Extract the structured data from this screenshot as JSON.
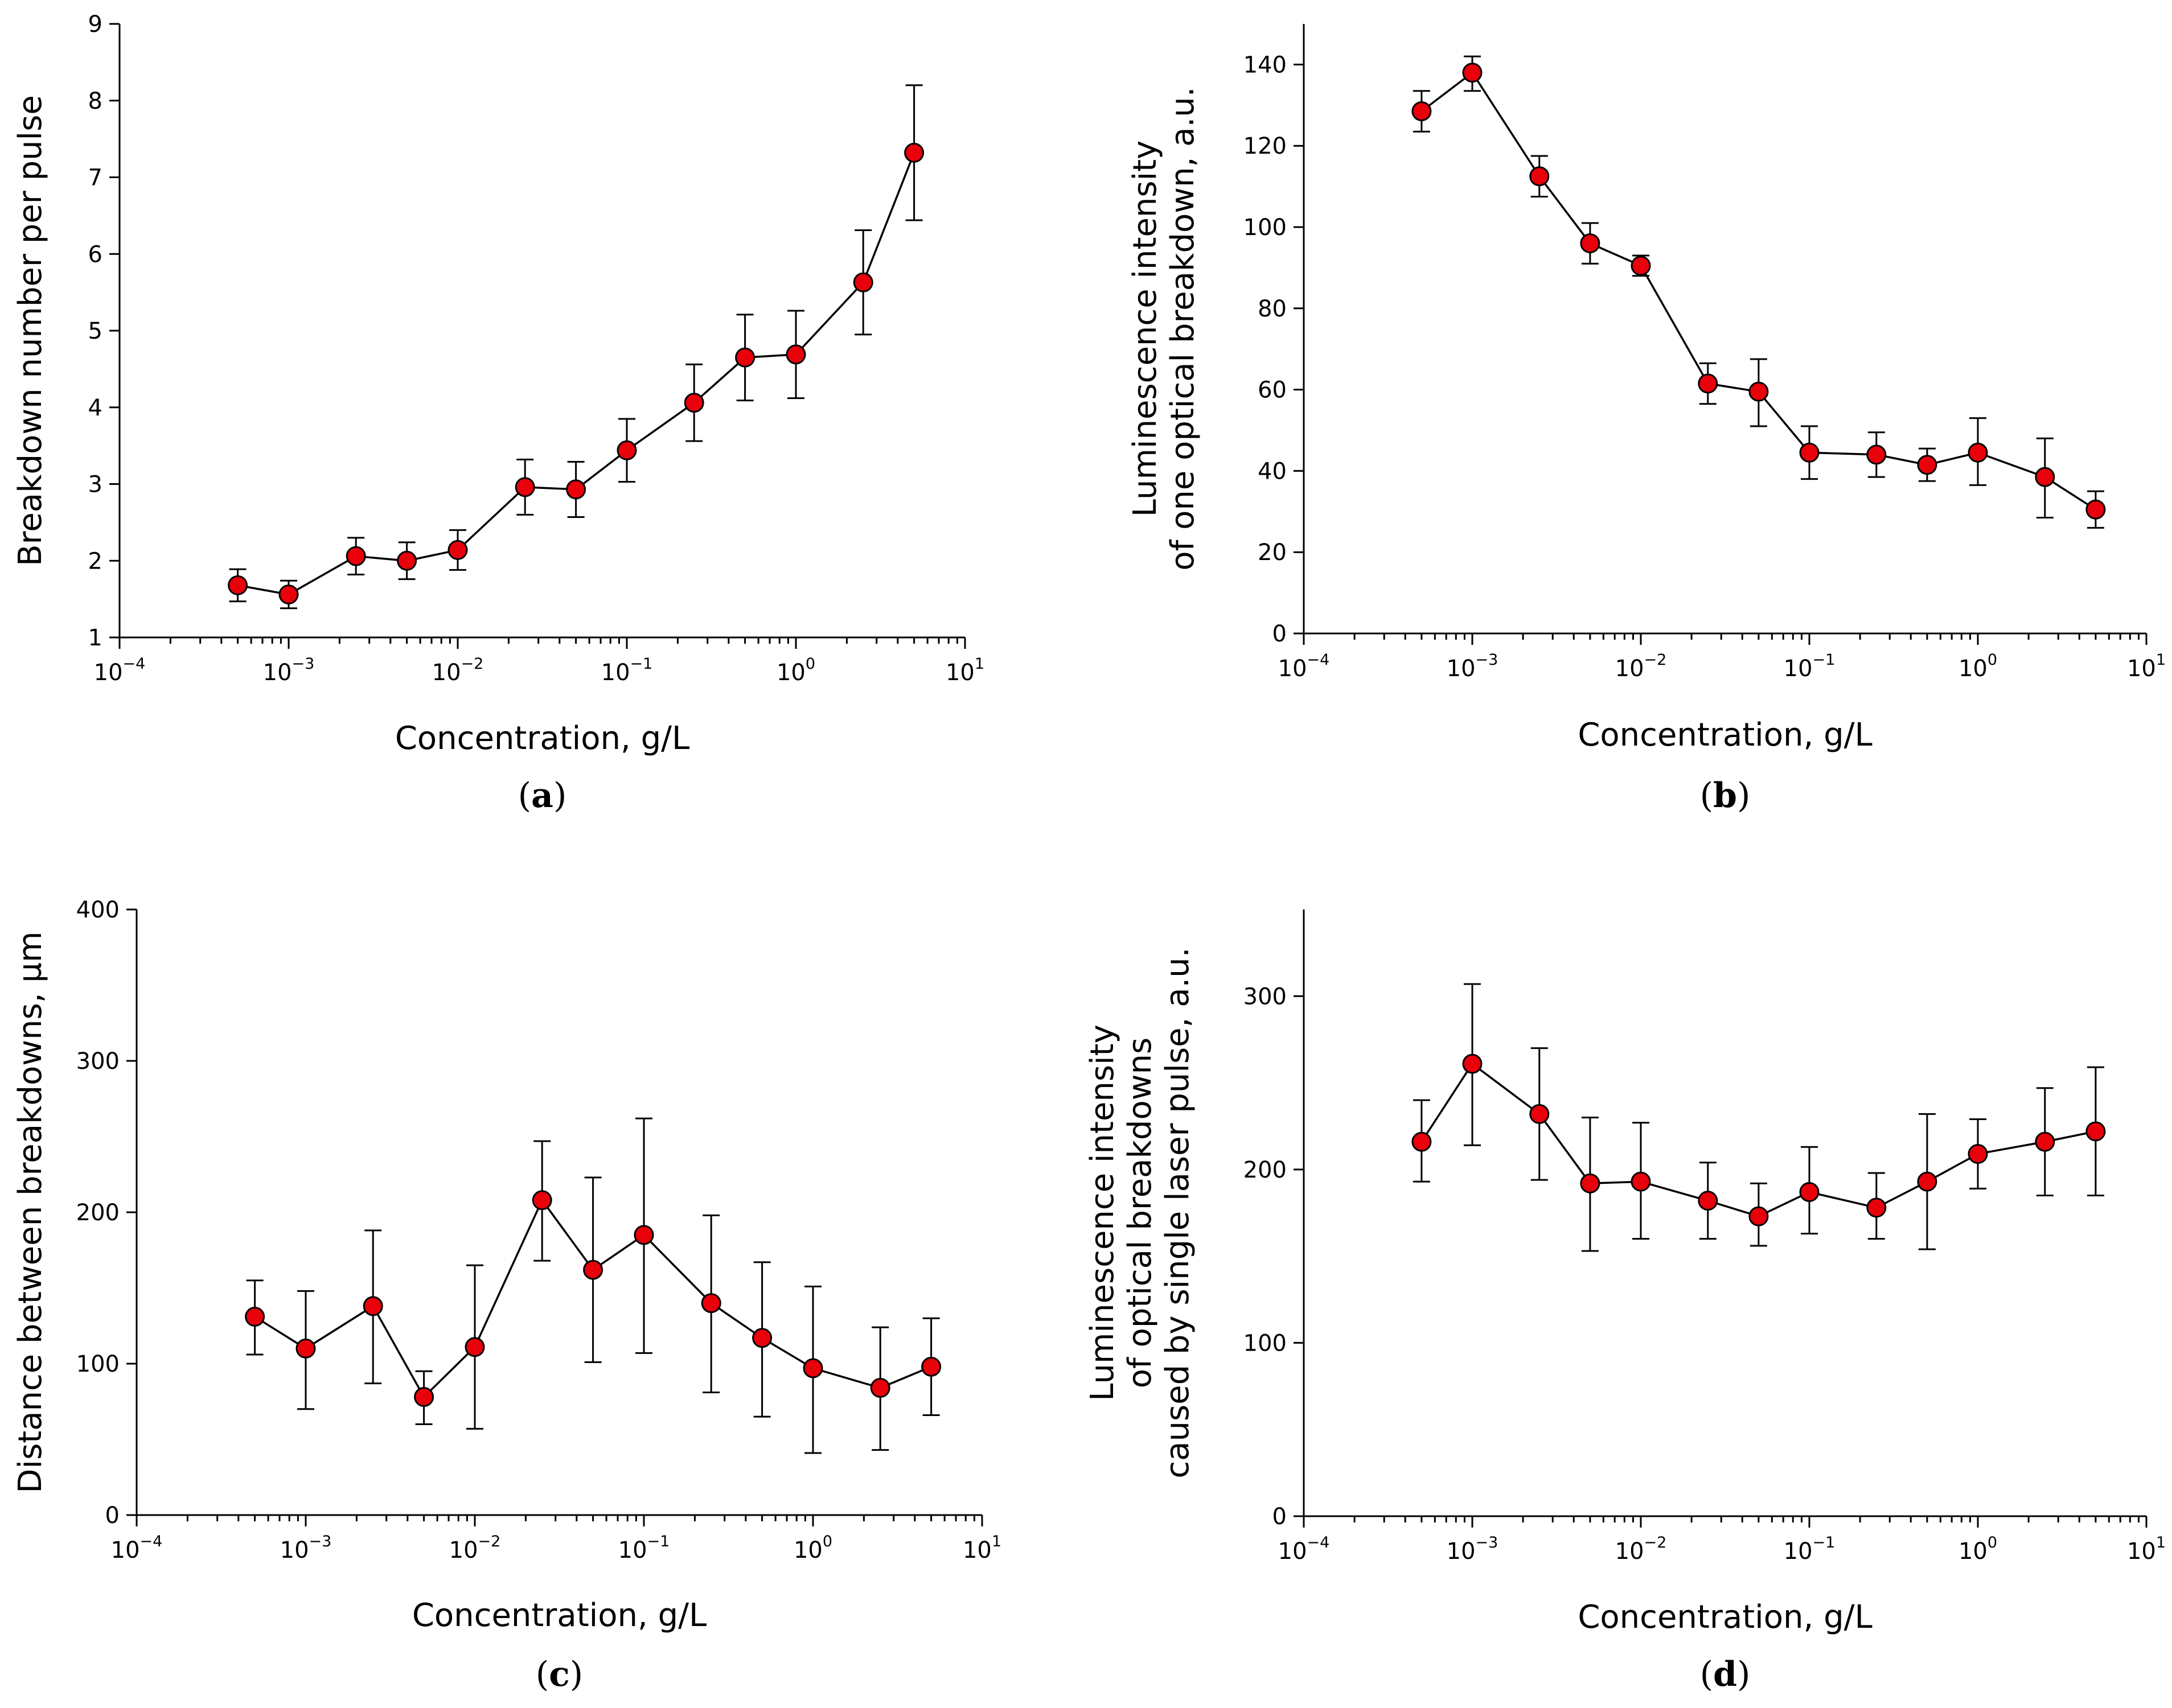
{
  "colors": {
    "marker_fill": "#e8000b",
    "line": "#000000"
  },
  "x_tick_labels": [
    {
      "base": "10",
      "exp": "−4"
    },
    {
      "base": "10",
      "exp": "−3"
    },
    {
      "base": "10",
      "exp": "−2"
    },
    {
      "base": "10",
      "exp": "−1"
    },
    {
      "base": "10",
      "exp": "0"
    },
    {
      "base": "10",
      "exp": "1"
    }
  ],
  "chart_data": [
    {
      "type": "line",
      "panel": "a",
      "caption_open": "(",
      "caption_letter": "a",
      "caption_close": ")",
      "xlabel": "Concentration, g/L",
      "ylabel": [
        "Breakdown number per pulse"
      ],
      "xscale": "log",
      "xlim": [
        0.0001,
        10
      ],
      "ylim": [
        1,
        9
      ],
      "yticks": [
        1,
        2,
        3,
        4,
        5,
        6,
        7,
        8,
        9
      ],
      "x": [
        0.0005,
        0.001,
        0.0025,
        0.005,
        0.01,
        0.025,
        0.05,
        0.1,
        0.25,
        0.5,
        1,
        2.5,
        5
      ],
      "y": [
        1.68,
        1.56,
        2.06,
        2.0,
        2.14,
        2.96,
        2.93,
        3.44,
        4.06,
        4.65,
        4.69,
        5.63,
        7.32
      ],
      "err_low": [
        1.47,
        1.38,
        1.82,
        1.76,
        1.88,
        2.6,
        2.57,
        3.03,
        3.56,
        4.09,
        4.12,
        4.95,
        6.44
      ],
      "err_high": [
        1.89,
        1.74,
        2.3,
        2.24,
        2.4,
        3.32,
        3.29,
        3.85,
        4.56,
        5.21,
        5.26,
        6.31,
        8.2
      ]
    },
    {
      "type": "line",
      "panel": "b",
      "caption_open": "(",
      "caption_letter": "b",
      "caption_close": ")",
      "xlabel": "Concentration, g/L",
      "ylabel": [
        "Luminescence intensity",
        "of one optical breakdown, a.u."
      ],
      "xscale": "log",
      "xlim": [
        0.0001,
        10
      ],
      "ylim": [
        0,
        150
      ],
      "yticks": [
        0,
        20,
        40,
        60,
        80,
        100,
        120,
        140
      ],
      "x": [
        0.0005,
        0.001,
        0.0025,
        0.005,
        0.01,
        0.025,
        0.05,
        0.1,
        0.25,
        0.5,
        1,
        2.5,
        5
      ],
      "y": [
        128.5,
        138,
        112.5,
        96,
        90.5,
        61.5,
        59.5,
        44.5,
        44,
        41.5,
        44.5,
        38.5,
        30.5
      ],
      "err_low": [
        123.5,
        133.5,
        107.5,
        91,
        88,
        56.5,
        51,
        38,
        38.5,
        37.5,
        36.5,
        28.5,
        26
      ],
      "err_high": [
        133.5,
        142,
        117.5,
        101,
        93,
        66.5,
        67.5,
        51,
        49.5,
        45.5,
        53,
        48,
        35
      ]
    },
    {
      "type": "line",
      "panel": "c",
      "caption_open": "(",
      "caption_letter": "c",
      "caption_close": ")",
      "xlabel": "Concentration, g/L",
      "ylabel": [
        "Distance between breakdowns, µm"
      ],
      "xscale": "log",
      "xlim": [
        0.0001,
        10
      ],
      "ylim": [
        0,
        400
      ],
      "yticks": [
        0,
        100,
        200,
        300,
        400
      ],
      "x": [
        0.0005,
        0.001,
        0.0025,
        0.005,
        0.01,
        0.025,
        0.05,
        0.1,
        0.25,
        0.5,
        1,
        2.5,
        5
      ],
      "y": [
        131,
        110,
        138,
        78,
        111,
        208,
        162,
        185,
        140,
        117,
        97,
        84,
        98
      ],
      "err_low": [
        106,
        70,
        87,
        60,
        57,
        168,
        101,
        107,
        81,
        65,
        41,
        43,
        66
      ],
      "err_high": [
        155,
        148,
        188,
        95,
        165,
        247,
        223,
        262,
        198,
        167,
        151,
        124,
        130
      ]
    },
    {
      "type": "line",
      "panel": "d",
      "caption_open": "(",
      "caption_letter": "d",
      "caption_close": ")",
      "xlabel": "Concentration, g/L",
      "ylabel": [
        "Luminescence intensity",
        "of optical breakdowns",
        "caused by single laser pulse, a.u."
      ],
      "xscale": "log",
      "xlim": [
        0.0001,
        10
      ],
      "ylim": [
        0,
        350
      ],
      "yticks": [
        0,
        100,
        200,
        300
      ],
      "x": [
        0.0005,
        0.001,
        0.0025,
        0.005,
        0.01,
        0.025,
        0.05,
        0.1,
        0.25,
        0.5,
        1,
        2.5,
        5
      ],
      "y": [
        216,
        261,
        232,
        192,
        193,
        182,
        173,
        187,
        178,
        193,
        209,
        216,
        222
      ],
      "err_low": [
        193,
        214,
        194,
        153,
        160,
        160,
        156,
        163,
        160,
        154,
        189,
        185,
        185
      ],
      "err_high": [
        240,
        307,
        270,
        230,
        227,
        204,
        192,
        213,
        198,
        232,
        229,
        247,
        259
      ]
    }
  ]
}
